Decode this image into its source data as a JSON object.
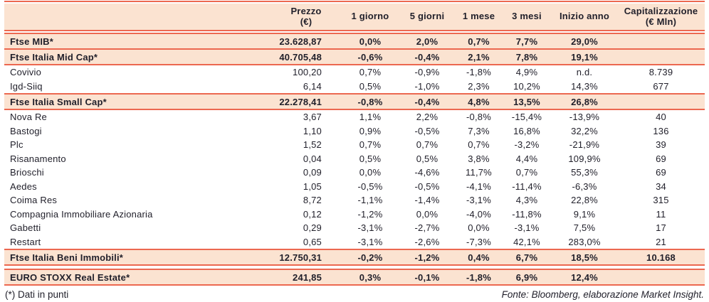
{
  "colors": {
    "accent": "#ec6850",
    "band": "#fbe3d1",
    "text": "#201f2a"
  },
  "table": {
    "columns": [
      {
        "id": "name",
        "label": ""
      },
      {
        "id": "prezzo",
        "label": "Prezzo\n(€)"
      },
      {
        "id": "g1",
        "label": "1 giorno"
      },
      {
        "id": "g5",
        "label": "5 giorni"
      },
      {
        "id": "m1",
        "label": "1 mese"
      },
      {
        "id": "m3",
        "label": "3 mesi"
      },
      {
        "id": "inizio",
        "label": "Inizio anno"
      },
      {
        "id": "cap",
        "label": "Capitalizzazione\n(€ Mln)"
      }
    ],
    "rows": [
      {
        "style": "index",
        "cells": [
          "Ftse MIB*",
          "23.628,87",
          "0,0%",
          "2,0%",
          "0,7%",
          "7,7%",
          "29,0%",
          ""
        ]
      },
      {
        "style": "index",
        "cells": [
          "Ftse Italia Mid Cap*",
          "40.705,48",
          "-0,6%",
          "-0,4%",
          "2,1%",
          "7,8%",
          "19,1%",
          ""
        ]
      },
      {
        "style": "stock",
        "cells": [
          "Covivio",
          "100,20",
          "0,7%",
          "-0,9%",
          "-1,8%",
          "4,9%",
          "n.d.",
          "8.739"
        ]
      },
      {
        "style": "stock",
        "cells": [
          "Igd-Siiq",
          "6,14",
          "0,5%",
          "-1,0%",
          "2,3%",
          "10,2%",
          "14,3%",
          "677"
        ]
      },
      {
        "style": "index",
        "cells": [
          "Ftse Italia Small Cap*",
          "22.278,41",
          "-0,8%",
          "-0,4%",
          "4,8%",
          "13,5%",
          "26,8%",
          ""
        ]
      },
      {
        "style": "stock",
        "cells": [
          "Nova Re",
          "3,67",
          "1,1%",
          "2,2%",
          "-0,8%",
          "-15,4%",
          "-13,9%",
          "40"
        ]
      },
      {
        "style": "stock",
        "cells": [
          "Bastogi",
          "1,10",
          "0,9%",
          "-0,5%",
          "7,3%",
          "16,8%",
          "32,2%",
          "136"
        ]
      },
      {
        "style": "stock",
        "cells": [
          "Plc",
          "1,52",
          "0,7%",
          "0,7%",
          "0,7%",
          "-3,2%",
          "-21,9%",
          "39"
        ]
      },
      {
        "style": "stock",
        "cells": [
          "Risanamento",
          "0,04",
          "0,5%",
          "0,5%",
          "3,8%",
          "4,4%",
          "109,9%",
          "69"
        ]
      },
      {
        "style": "stock",
        "cells": [
          "Brioschi",
          "0,09",
          "0,0%",
          "-4,6%",
          "11,7%",
          "0,7%",
          "55,3%",
          "69"
        ]
      },
      {
        "style": "stock",
        "cells": [
          "Aedes",
          "1,05",
          "-0,5%",
          "-0,5%",
          "-4,1%",
          "-11,4%",
          "-6,3%",
          "34"
        ]
      },
      {
        "style": "stock",
        "cells": [
          "Coima Res",
          "8,72",
          "-1,1%",
          "-1,4%",
          "-3,1%",
          "4,3%",
          "22,8%",
          "315"
        ]
      },
      {
        "style": "stock",
        "cells": [
          "Compagnia Immobiliare Azionaria",
          "0,12",
          "-1,2%",
          "0,0%",
          "-4,0%",
          "-11,8%",
          "9,1%",
          "11"
        ]
      },
      {
        "style": "stock",
        "cells": [
          "Gabetti",
          "0,29",
          "-3,1%",
          "-2,7%",
          "0,0%",
          "-3,1%",
          "7,5%",
          "17"
        ]
      },
      {
        "style": "stock",
        "cells": [
          "Restart",
          "0,65",
          "-3,1%",
          "-2,6%",
          "-7,3%",
          "42,1%",
          "283,0%",
          "21"
        ]
      },
      {
        "style": "index",
        "cells": [
          "Ftse Italia Beni Immobili*",
          "12.750,31",
          "-0,2%",
          "-1,2%",
          "0,4%",
          "6,7%",
          "18,5%",
          "10.168"
        ]
      },
      {
        "style": "index",
        "cells": [
          "EURO STOXX Real Estate*",
          "241,85",
          "0,3%",
          "-0,1%",
          "-1,8%",
          "6,9%",
          "12,4%",
          ""
        ]
      }
    ]
  },
  "footer": {
    "left": "(*) Dati in punti",
    "right": "Fonte: Bloomberg, elaborazione Market Insight."
  }
}
